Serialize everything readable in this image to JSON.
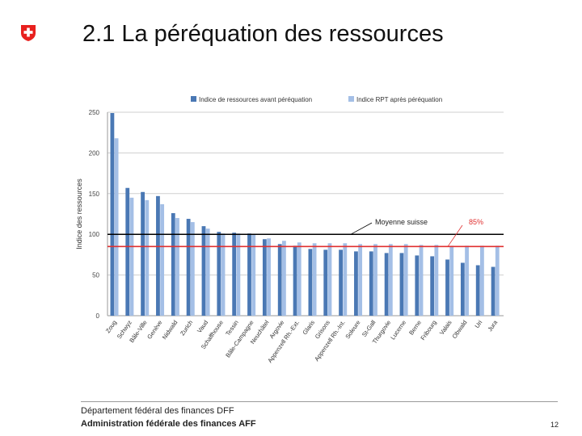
{
  "header": {
    "title": "2.1 La péréquation des ressources"
  },
  "colors": {
    "dark_series": "#4a78b4",
    "light_series": "#a4bfe6",
    "red_line": "#e03030",
    "black_line": "#000000",
    "swiss_red": "#e8201e"
  },
  "footer": {
    "department": "Département fédéral des finances DFF",
    "administration": "Administration fédérale des finances AFF",
    "page_number": "12"
  },
  "chart_data": {
    "type": "bar",
    "title": "",
    "ylabel": "Indice des ressources",
    "xlabel": "",
    "ylim": [
      0,
      250
    ],
    "yticks": [
      "0",
      "50",
      "100",
      "150",
      "200",
      "250"
    ],
    "categories": [
      "Zoug",
      "Schwyz",
      "Bâle-Ville",
      "Genève",
      "Nidwald",
      "Zurich",
      "Vaud",
      "Schaffhouse",
      "Tessin",
      "Bâle-Campagne",
      "Neuchâtel",
      "Argovie",
      "Appenzell Rh.-Ext.",
      "Glaris",
      "Grisons",
      "Appenzell Rh.-Int.",
      "Soleure",
      "St-Gall",
      "Thurgovie",
      "Lucerne",
      "Berne",
      "Fribourg",
      "Valais",
      "Obwald",
      "Uri",
      "Jura"
    ],
    "series": [
      {
        "name": "Indice de ressources avant péréquation",
        "values": [
          249,
          157,
          152,
          147,
          126,
          119,
          110,
          103,
          102,
          101,
          94,
          88,
          86,
          82,
          81,
          81,
          79,
          79,
          77,
          77,
          74,
          73,
          69,
          65,
          62,
          60
        ]
      },
      {
        "name": "Indice RPT après péréquation",
        "values": [
          218,
          145,
          142,
          137,
          120,
          115,
          107,
          101,
          101,
          100,
          95,
          92,
          90,
          89,
          89,
          89,
          88,
          88,
          88,
          88,
          87,
          87,
          86,
          86,
          86,
          86
        ]
      }
    ],
    "reference_lines": [
      {
        "label": "Moyenne suisse",
        "value": 100
      },
      {
        "label": "85%",
        "value": 85
      }
    ],
    "legend": "top",
    "grid": true
  }
}
